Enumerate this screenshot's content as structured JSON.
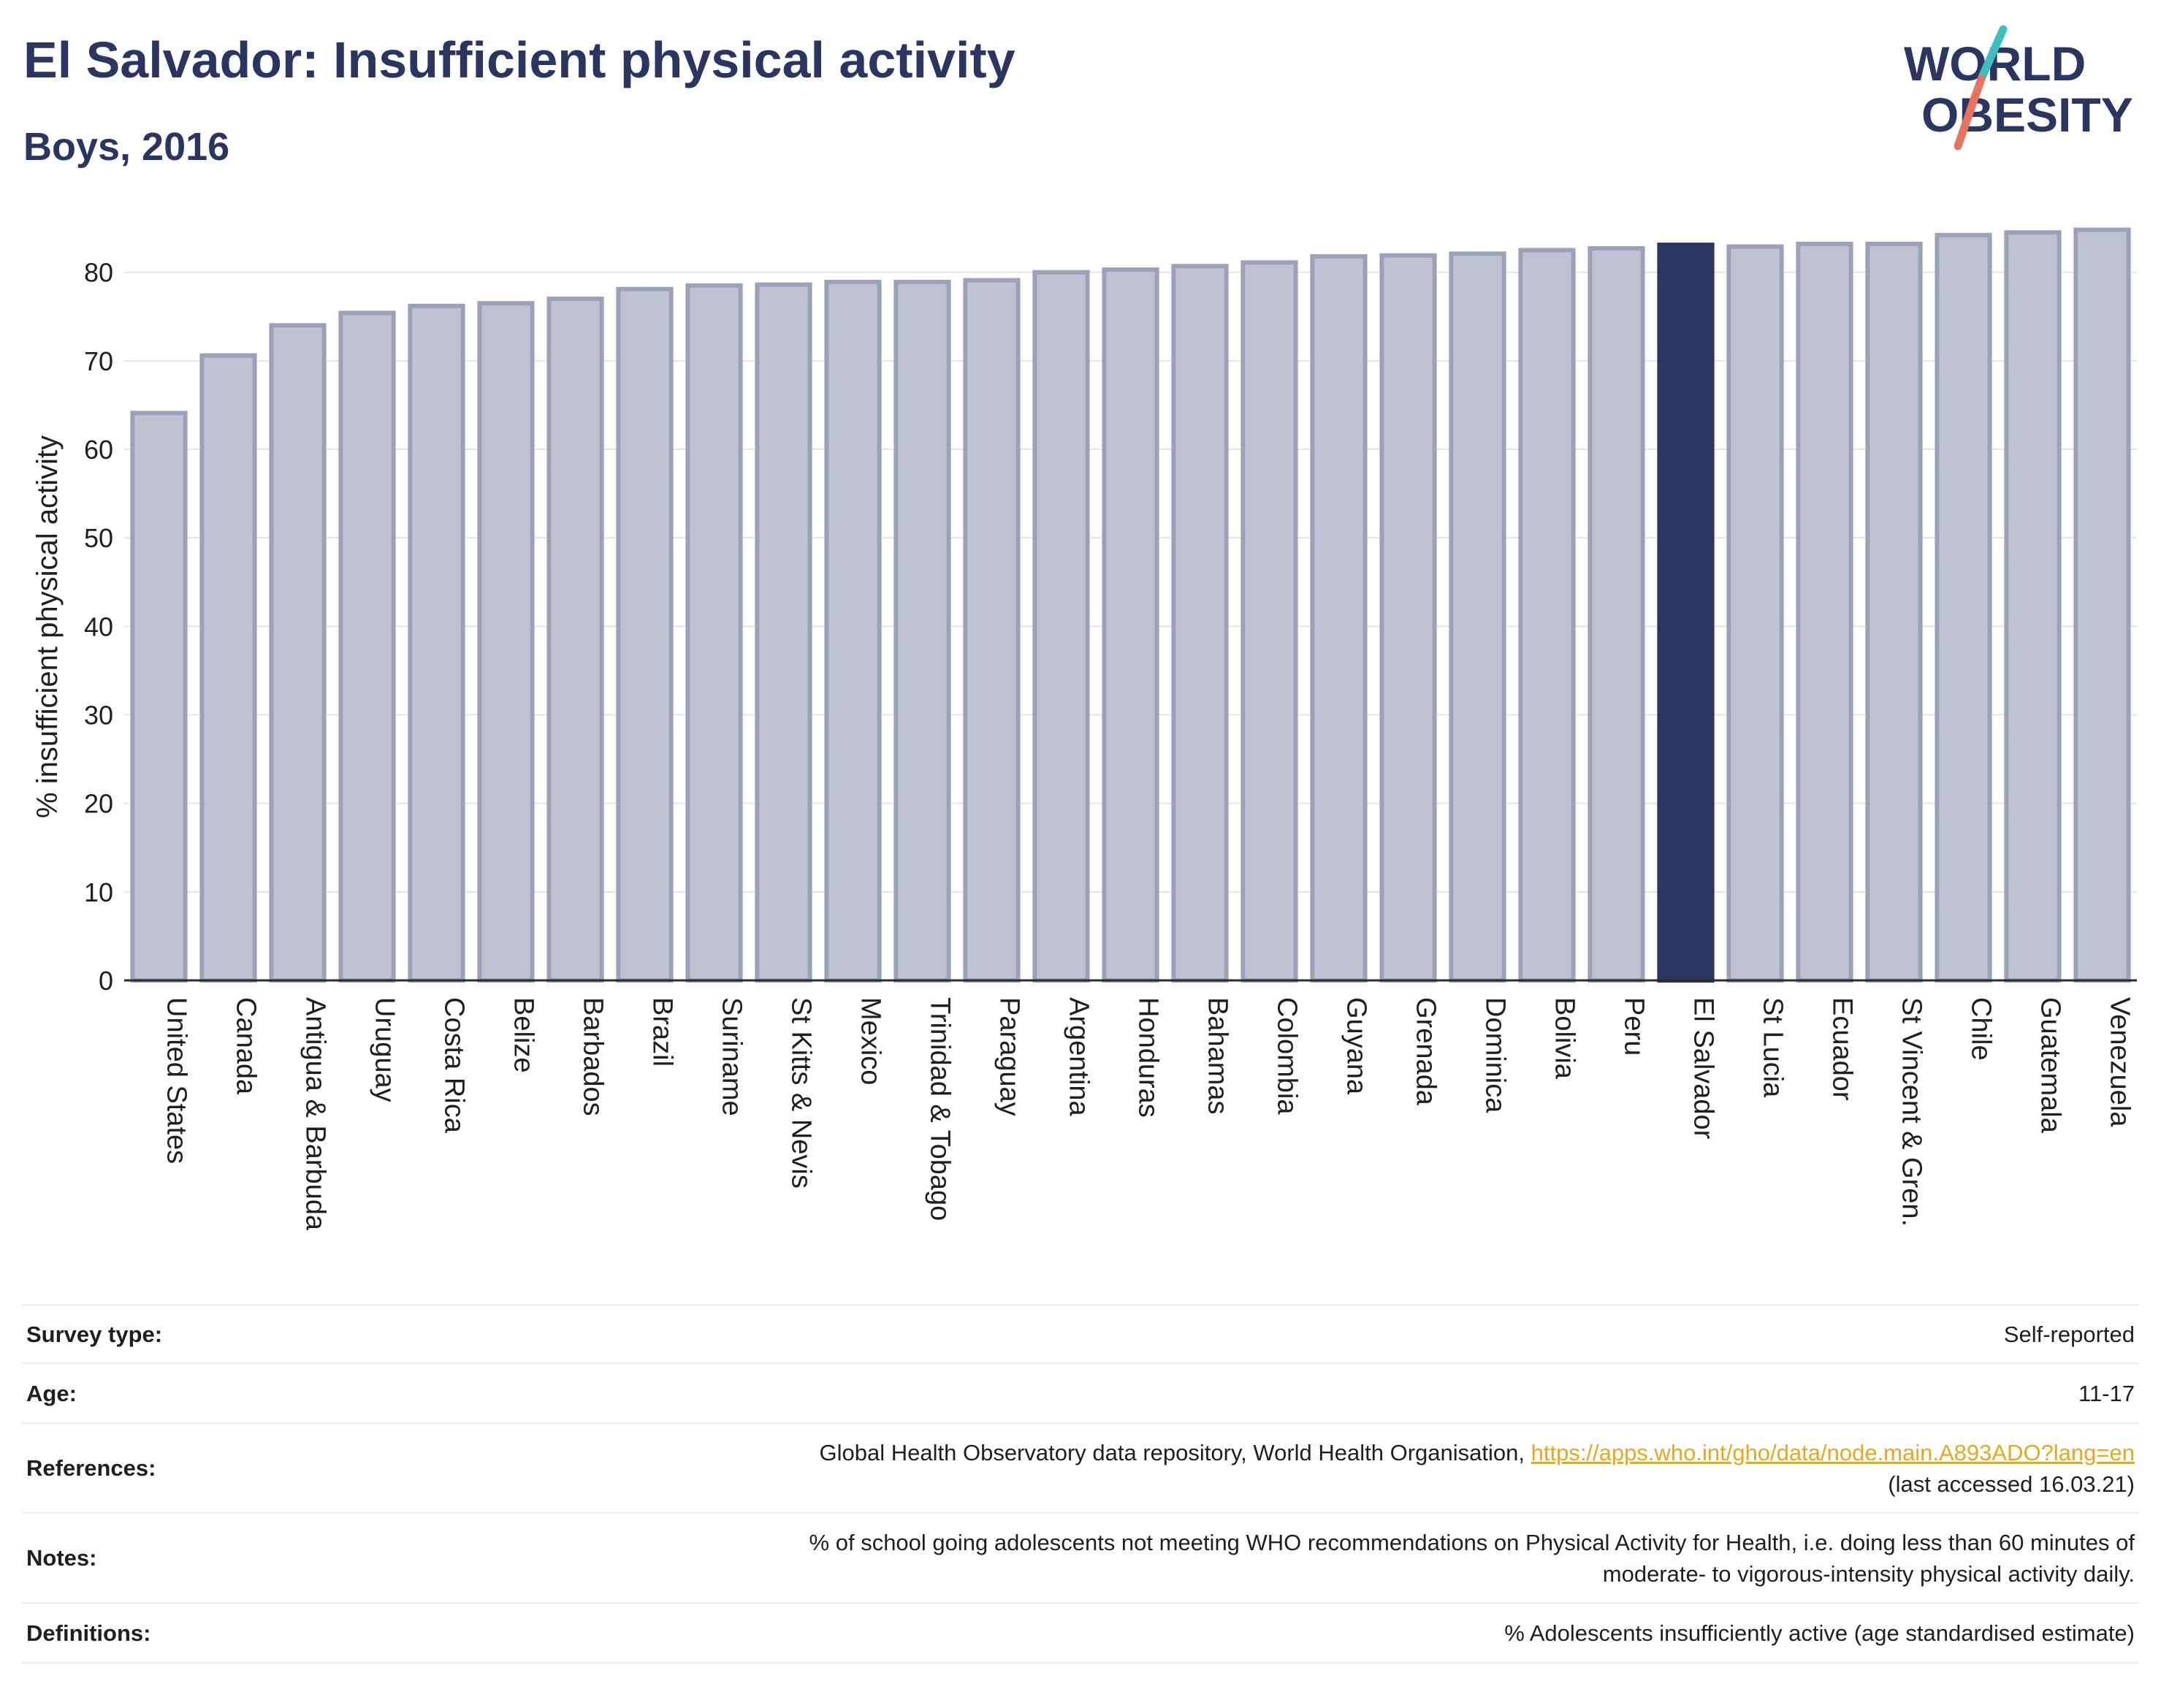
{
  "header": {
    "title": "El Salvador: Insufficient physical activity",
    "subtitle": "Boys, 2016"
  },
  "logo": {
    "line1": "WORLD",
    "line2": "OBESITY",
    "colors": {
      "text": "#2a3561",
      "slash_teal": "#3dbfbf",
      "slash_coral": "#e8735f"
    }
  },
  "colors": {
    "bar_fill": "#bfc2d0",
    "bar_stroke": "#9ba1b8",
    "highlight_fill": "#2a3561",
    "grid": "#e5e5e5",
    "axis": "#2b2b2b"
  },
  "chart_data": {
    "type": "bar",
    "ylabel": "% insufficient physical activity",
    "ylim": [
      0,
      86
    ],
    "yticks": [
      0,
      10,
      20,
      30,
      40,
      50,
      60,
      70,
      80
    ],
    "grid": true,
    "highlight": "El Salvador",
    "categories": [
      "United States",
      "Canada",
      "Antigua & Barbuda",
      "Uruguay",
      "Costa Rica",
      "Belize",
      "Barbados",
      "Brazil",
      "Suriname",
      "St Kitts & Nevis",
      "Mexico",
      "Trinidad & Tobago",
      "Paraguay",
      "Argentina",
      "Honduras",
      "Bahamas",
      "Colombia",
      "Guyana",
      "Grenada",
      "Dominica",
      "Bolivia",
      "Peru",
      "El Salvador",
      "St Lucia",
      "Ecuador",
      "St Vincent & Gren.",
      "Chile",
      "Guatemala",
      "Venezuela"
    ],
    "values": [
      64.1,
      70.6,
      74.0,
      75.4,
      76.2,
      76.5,
      77.0,
      78.1,
      78.5,
      78.6,
      78.9,
      78.9,
      79.1,
      80.0,
      80.3,
      80.7,
      81.1,
      81.8,
      81.9,
      82.1,
      82.5,
      82.7,
      83.1,
      82.9,
      83.2,
      83.2,
      84.2,
      84.5,
      84.8
    ]
  },
  "info_table": {
    "rows": [
      {
        "label": "Survey type:",
        "value": "Self-reported"
      },
      {
        "label": "Age:",
        "value": "11-17"
      },
      {
        "label": "References:",
        "value": "Global Health Observatory data repository, World Health Organisation, ",
        "link": "https://apps.who.int/gho/data/node.main.A893ADO?lang=en",
        "value2": "(last accessed 16.03.21)"
      },
      {
        "label": "Notes:",
        "value": "% of school going adolescents not meeting WHO recommendations on Physical Activity for Health, i.e. doing less than 60 minutes of",
        "value2": "moderate- to vigorous-intensity physical activity daily."
      },
      {
        "label": "Definitions:",
        "value": "% Adolescents insufficiently active (age standardised estimate)"
      }
    ]
  }
}
